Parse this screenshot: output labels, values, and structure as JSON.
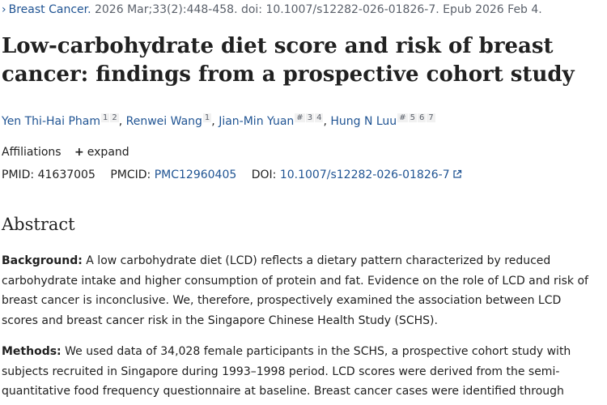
{
  "citation": {
    "journal": "Breast Cancer.",
    "details": " 2026 Mar;33(2):448-458. doi: 10.1007/s12282-026-01826-7. Epub 2026 Feb 4."
  },
  "title": "Low-carbohydrate diet score and risk of breast cancer: findings from a prospective cohort study",
  "authors": [
    {
      "name": "Yen Thi-Hai Pham",
      "sups": [
        "1",
        "2"
      ]
    },
    {
      "name": "Renwei Wang",
      "sups": [
        "1"
      ]
    },
    {
      "name": "Jian-Min Yuan",
      "sups": [
        "#",
        "3",
        "4"
      ]
    },
    {
      "name": "Hung N Luu",
      "sups": [
        "#",
        "5",
        "6",
        "7"
      ]
    }
  ],
  "separator": ",",
  "affiliations": {
    "label": "Affiliations",
    "expand_label": "expand"
  },
  "ids": {
    "pmid_label": "PMID:",
    "pmid": "41637005",
    "pmcid_label": "PMCID:",
    "pmcid": "PMC12960405",
    "doi_label": "DOI:",
    "doi": "10.1007/s12282-026-01826-7"
  },
  "abstract": {
    "heading": "Abstract",
    "background_label": "Background:",
    "background_text": " A low carbohydrate diet (LCD) reflects a dietary pattern characterized by reduced carbohydrate intake and higher consumption of protein and fat. Evidence on the role of LCD and risk of breast cancer is inconclusive. We, therefore, prospectively examined the association between LCD scores and breast cancer risk in the Singapore Chinese Health Study (SCHS).",
    "methods_label": "Methods:",
    "methods_text": " We used data of 34,028 female participants in the SCHS, a prospective cohort study with subjects recruited in Singapore during 1993–1998 period. LCD scores were derived from the semi-quantitative food frequency questionnaire at baseline. Breast cancer cases were identified through"
  },
  "colors": {
    "link": "#205493",
    "text": "#212121",
    "muted": "#5b616b"
  },
  "icons": {
    "journal_chevron": "chevron-right-icon",
    "expand": "plus-icon",
    "doi_external": "external-link-icon"
  }
}
